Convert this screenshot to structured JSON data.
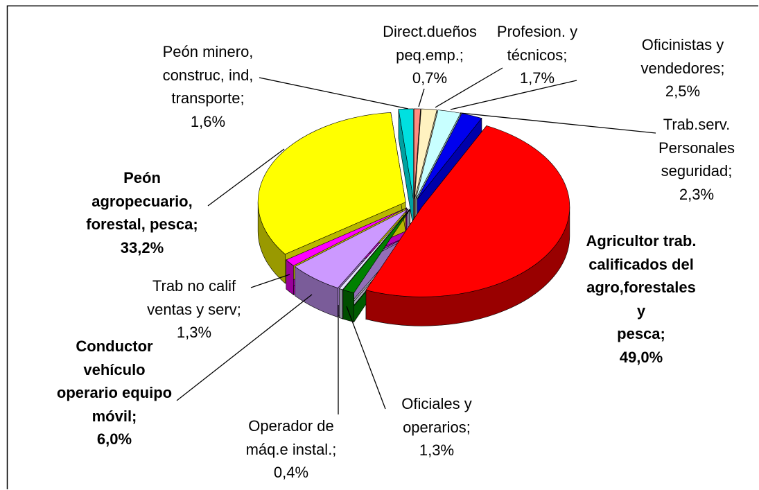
{
  "chart_data": {
    "type": "pie",
    "categories": [
      "Direct.dueños\npeq.emp.;",
      "Profesion. y\ntécnicos;",
      "Oficinistas y\nvendedores;",
      "Trab.serv.\nPersonales\nseguridad;",
      "Agricultor trab.\ncalificados del\nagro,forestales\ny\npesca;",
      "Oficiales y\noperarios;",
      "Operador de\nmáq.e instal.;",
      "Conductor\nvehículo\noperario equipo\nmóvil;",
      "Trab no calif\nventas y serv;",
      "Peón\nagropecuario,\nforestal, pesca;",
      "Peón minero,\nconstruc, ind,\ntransporte;"
    ],
    "values": [
      0.7,
      1.7,
      2.5,
      2.3,
      49.0,
      1.3,
      0.4,
      6.0,
      1.3,
      33.2,
      1.6
    ],
    "value_labels": [
      "0,7%",
      "1,7%",
      "2,5%",
      "2,3%",
      "49,0%",
      "1,3%",
      "0,4%",
      "6,0%",
      "1,3%",
      "33,2%",
      "1,6%"
    ],
    "colors": [
      "#ff8c80",
      "#fff2c0",
      "#c8ffff",
      "#0000ee",
      "#ff0000",
      "#008000",
      "#e6e6ff",
      "#cc99ff",
      "#ff00ff",
      "#ffff00",
      "#00e0e0"
    ]
  }
}
